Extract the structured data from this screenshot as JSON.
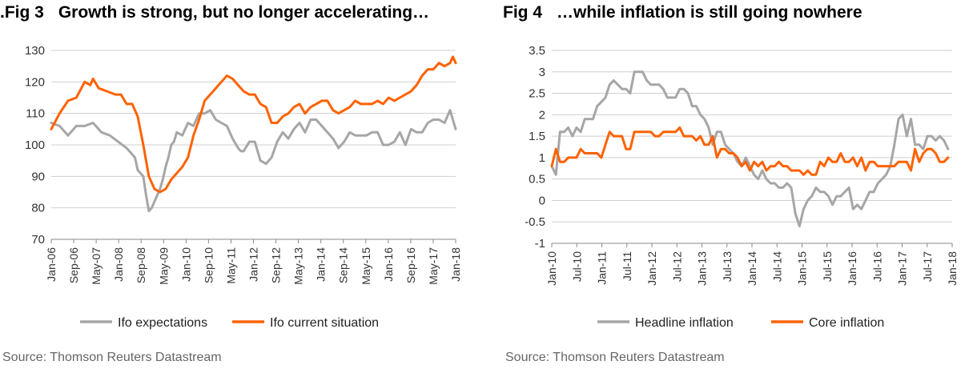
{
  "chart_data": [
    {
      "type": "line",
      "fig_label": ".Fig 3",
      "title": "Growth is strong, but no longer accelerating…",
      "source": "Source: Thomson Reuters Datastream",
      "ylim": [
        70,
        130
      ],
      "yticks": [
        70,
        80,
        90,
        100,
        110,
        120,
        130
      ],
      "xlim": [
        "2006-01",
        "2018-02"
      ],
      "xtick_labels": [
        "Jan-06",
        "Sep-06",
        "May-07",
        "Jan-08",
        "Sep-08",
        "May-09",
        "Jan-10",
        "Sep-10",
        "May-11",
        "Jan-12",
        "Sep-12",
        "May-13",
        "Jan-14",
        "Sep-14",
        "May-15",
        "Jan-16",
        "Sep-16",
        "May-17",
        "Jan-18"
      ],
      "grid": "horizontal",
      "legend": "bottom",
      "series": [
        {
          "name": "Ifo expectations",
          "color": "#a6a6a6",
          "x": [
            "2006-01",
            "2006-04",
            "2006-07",
            "2006-10",
            "2007-01",
            "2007-04",
            "2007-07",
            "2007-10",
            "2008-01",
            "2008-04",
            "2008-07",
            "2008-08",
            "2008-10",
            "2008-11",
            "2008-12",
            "2009-01",
            "2009-02",
            "2009-03",
            "2009-04",
            "2009-05",
            "2009-06",
            "2009-07",
            "2009-08",
            "2009-09",
            "2009-10",
            "2009-12",
            "2010-02",
            "2010-04",
            "2010-06",
            "2010-08",
            "2010-10",
            "2010-12",
            "2011-02",
            "2011-04",
            "2011-06",
            "2011-08",
            "2011-09",
            "2011-10",
            "2011-12",
            "2012-02",
            "2012-04",
            "2012-06",
            "2012-08",
            "2012-10",
            "2012-12",
            "2013-02",
            "2013-04",
            "2013-06",
            "2013-08",
            "2013-10",
            "2013-12",
            "2014-02",
            "2014-04",
            "2014-06",
            "2014-08",
            "2014-10",
            "2014-12",
            "2015-02",
            "2015-04",
            "2015-06",
            "2015-08",
            "2015-10",
            "2015-12",
            "2016-02",
            "2016-04",
            "2016-06",
            "2016-08",
            "2016-10",
            "2016-12",
            "2017-02",
            "2017-04",
            "2017-06",
            "2017-08",
            "2017-10",
            "2017-12",
            "2018-01",
            "2018-02"
          ],
          "values": [
            107,
            106,
            103,
            106,
            106,
            107,
            104,
            103,
            101,
            99,
            96,
            92,
            90,
            84,
            79,
            80,
            82,
            84,
            86,
            89,
            93,
            96,
            100,
            101,
            104,
            103,
            107,
            106,
            110,
            110,
            111,
            108,
            107,
            106,
            102,
            99,
            98,
            98,
            101,
            101,
            95,
            94,
            96,
            101,
            104,
            102,
            105,
            107,
            104,
            108,
            108,
            106,
            104,
            102,
            99,
            101,
            104,
            103,
            103,
            103,
            104,
            104,
            100,
            100,
            101,
            104,
            100,
            105,
            104,
            104,
            107,
            108,
            108,
            107,
            111,
            108,
            105
          ]
        },
        {
          "name": "Ifo current situation",
          "color": "#ff6200",
          "x": [
            "2006-01",
            "2006-04",
            "2006-07",
            "2006-10",
            "2007-01",
            "2007-03",
            "2007-04",
            "2007-06",
            "2007-09",
            "2007-12",
            "2008-02",
            "2008-04",
            "2008-06",
            "2008-08",
            "2008-10",
            "2008-12",
            "2009-02",
            "2009-04",
            "2009-06",
            "2009-08",
            "2009-10",
            "2009-12",
            "2010-02",
            "2010-04",
            "2010-06",
            "2010-08",
            "2010-10",
            "2010-12",
            "2011-02",
            "2011-04",
            "2011-06",
            "2011-08",
            "2011-10",
            "2011-12",
            "2012-02",
            "2012-04",
            "2012-06",
            "2012-08",
            "2012-10",
            "2012-12",
            "2013-02",
            "2013-04",
            "2013-06",
            "2013-08",
            "2013-10",
            "2013-12",
            "2014-02",
            "2014-04",
            "2014-06",
            "2014-08",
            "2014-10",
            "2014-12",
            "2015-02",
            "2015-04",
            "2015-06",
            "2015-08",
            "2015-10",
            "2015-12",
            "2016-02",
            "2016-04",
            "2016-06",
            "2016-08",
            "2016-10",
            "2016-12",
            "2017-02",
            "2017-04",
            "2017-06",
            "2017-08",
            "2017-10",
            "2017-12",
            "2018-01",
            "2018-02"
          ],
          "values": [
            105,
            110,
            114,
            115,
            120,
            119,
            121,
            118,
            117,
            116,
            116,
            113,
            113,
            109,
            100,
            90,
            86,
            85,
            86,
            89,
            91,
            93,
            96,
            103,
            108,
            114,
            116,
            118,
            120,
            122,
            121,
            119,
            117,
            116,
            116,
            113,
            112,
            107,
            107,
            109,
            110,
            112,
            113,
            110,
            112,
            113,
            114,
            114,
            111,
            110,
            111,
            112,
            114,
            113,
            113,
            113,
            114,
            113,
            115,
            114,
            115,
            116,
            117,
            119,
            122,
            124,
            124,
            126,
            125,
            126,
            128,
            126
          ]
        }
      ]
    },
    {
      "type": "line",
      "fig_label": "Fig 4",
      "title": "…while inflation is still going nowhere",
      "source": "Source: Thomson Reuters Datastream",
      "ylim": [
        -1,
        3.5
      ],
      "yticks": [
        -1,
        -0.5,
        0,
        0.5,
        1,
        1.5,
        2,
        2.5,
        3,
        3.5
      ],
      "xlim": [
        "2010-01",
        "2018-02"
      ],
      "xtick_labels": [
        "Jan-10",
        "Jul-10",
        "Jan-11",
        "Jul-11",
        "Jan-12",
        "Jul-12",
        "Jan-13",
        "Jul-13",
        "Jan-14",
        "Jul-14",
        "Jan-15",
        "Jul-15",
        "Jan-16",
        "Jul-16",
        "Jan-17",
        "Jul-17",
        "Jan-18"
      ],
      "grid": "horizontal",
      "legend": "bottom",
      "series": [
        {
          "name": "Headline inflation",
          "color": "#a6a6a6",
          "x": [
            "2010-01",
            "2010-02",
            "2010-03",
            "2010-04",
            "2010-05",
            "2010-06",
            "2010-07",
            "2010-08",
            "2010-09",
            "2010-10",
            "2010-11",
            "2010-12",
            "2011-01",
            "2011-02",
            "2011-03",
            "2011-04",
            "2011-05",
            "2011-06",
            "2011-07",
            "2011-08",
            "2011-09",
            "2011-10",
            "2011-11",
            "2011-12",
            "2012-01",
            "2012-02",
            "2012-03",
            "2012-04",
            "2012-05",
            "2012-06",
            "2012-07",
            "2012-08",
            "2012-09",
            "2012-10",
            "2012-11",
            "2012-12",
            "2013-01",
            "2013-02",
            "2013-03",
            "2013-04",
            "2013-05",
            "2013-06",
            "2013-07",
            "2013-08",
            "2013-09",
            "2013-10",
            "2013-11",
            "2013-12",
            "2014-01",
            "2014-02",
            "2014-03",
            "2014-04",
            "2014-05",
            "2014-06",
            "2014-07",
            "2014-08",
            "2014-09",
            "2014-10",
            "2014-11",
            "2014-12",
            "2015-01",
            "2015-02",
            "2015-03",
            "2015-04",
            "2015-05",
            "2015-06",
            "2015-07",
            "2015-08",
            "2015-09",
            "2015-10",
            "2015-11",
            "2015-12",
            "2016-01",
            "2016-02",
            "2016-03",
            "2016-04",
            "2016-05",
            "2016-06",
            "2016-07",
            "2016-08",
            "2016-09",
            "2016-10",
            "2016-11",
            "2016-12",
            "2017-01",
            "2017-02",
            "2017-03",
            "2017-04",
            "2017-05",
            "2017-06",
            "2017-07",
            "2017-08",
            "2017-09",
            "2017-10",
            "2017-11",
            "2017-12",
            "2018-01"
          ],
          "values": [
            0.8,
            0.6,
            1.6,
            1.6,
            1.7,
            1.5,
            1.7,
            1.6,
            1.9,
            1.9,
            1.9,
            2.2,
            2.3,
            2.4,
            2.7,
            2.8,
            2.7,
            2.6,
            2.6,
            2.5,
            3.0,
            3.0,
            3.0,
            2.8,
            2.7,
            2.7,
            2.7,
            2.6,
            2.4,
            2.4,
            2.4,
            2.6,
            2.6,
            2.5,
            2.2,
            2.2,
            2.0,
            1.9,
            1.7,
            1.3,
            1.6,
            1.6,
            1.3,
            1.2,
            1.1,
            0.9,
            0.8,
            1.0,
            0.8,
            0.6,
            0.5,
            0.7,
            0.5,
            0.4,
            0.4,
            0.3,
            0.3,
            0.4,
            0.3,
            -0.3,
            -0.6,
            -0.2,
            0.0,
            0.1,
            0.3,
            0.2,
            0.2,
            0.1,
            -0.1,
            0.1,
            0.1,
            0.2,
            0.3,
            -0.2,
            -0.1,
            -0.2,
            0.0,
            0.2,
            0.2,
            0.4,
            0.5,
            0.6,
            0.8,
            1.3,
            1.9,
            2.0,
            1.5,
            1.9,
            1.3,
            1.3,
            1.2,
            1.5,
            1.5,
            1.4,
            1.5,
            1.4,
            1.2
          ]
        },
        {
          "name": "Core inflation",
          "color": "#ff6200",
          "x": [
            "2010-01",
            "2010-02",
            "2010-03",
            "2010-04",
            "2010-05",
            "2010-06",
            "2010-07",
            "2010-08",
            "2010-09",
            "2010-10",
            "2010-11",
            "2010-12",
            "2011-01",
            "2011-02",
            "2011-03",
            "2011-04",
            "2011-05",
            "2011-06",
            "2011-07",
            "2011-08",
            "2011-09",
            "2011-10",
            "2011-11",
            "2011-12",
            "2012-01",
            "2012-02",
            "2012-03",
            "2012-04",
            "2012-05",
            "2012-06",
            "2012-07",
            "2012-08",
            "2012-09",
            "2012-10",
            "2012-11",
            "2012-12",
            "2013-01",
            "2013-02",
            "2013-03",
            "2013-04",
            "2013-05",
            "2013-06",
            "2013-07",
            "2013-08",
            "2013-09",
            "2013-10",
            "2013-11",
            "2013-12",
            "2014-01",
            "2014-02",
            "2014-03",
            "2014-04",
            "2014-05",
            "2014-06",
            "2014-07",
            "2014-08",
            "2014-09",
            "2014-10",
            "2014-11",
            "2014-12",
            "2015-01",
            "2015-02",
            "2015-03",
            "2015-04",
            "2015-05",
            "2015-06",
            "2015-07",
            "2015-08",
            "2015-09",
            "2015-10",
            "2015-11",
            "2015-12",
            "2016-01",
            "2016-02",
            "2016-03",
            "2016-04",
            "2016-05",
            "2016-06",
            "2016-07",
            "2016-08",
            "2016-09",
            "2016-10",
            "2016-11",
            "2016-12",
            "2017-01",
            "2017-02",
            "2017-03",
            "2017-04",
            "2017-05",
            "2017-06",
            "2017-07",
            "2017-08",
            "2017-09",
            "2017-10",
            "2017-11",
            "2017-12",
            "2018-01"
          ],
          "values": [
            0.8,
            1.2,
            0.9,
            0.9,
            1.0,
            1.0,
            1.0,
            1.2,
            1.1,
            1.1,
            1.1,
            1.1,
            1.0,
            1.3,
            1.6,
            1.5,
            1.5,
            1.5,
            1.2,
            1.2,
            1.6,
            1.6,
            1.6,
            1.6,
            1.6,
            1.5,
            1.5,
            1.6,
            1.6,
            1.6,
            1.6,
            1.7,
            1.5,
            1.5,
            1.5,
            1.4,
            1.5,
            1.3,
            1.3,
            1.5,
            1.0,
            1.2,
            1.2,
            1.1,
            1.1,
            1.0,
            0.8,
            0.9,
            0.7,
            0.9,
            0.8,
            0.9,
            0.7,
            0.8,
            0.8,
            0.9,
            0.8,
            0.8,
            0.7,
            0.7,
            0.7,
            0.6,
            0.7,
            0.6,
            0.6,
            0.9,
            0.8,
            1.0,
            0.9,
            0.9,
            1.1,
            0.9,
            0.9,
            1.0,
            0.8,
            1.0,
            0.7,
            0.9,
            0.9,
            0.8,
            0.8,
            0.8,
            0.8,
            0.8,
            0.9,
            0.9,
            0.9,
            0.7,
            1.2,
            0.9,
            1.1,
            1.2,
            1.2,
            1.1,
            0.9,
            0.9,
            1.0
          ]
        }
      ]
    }
  ]
}
